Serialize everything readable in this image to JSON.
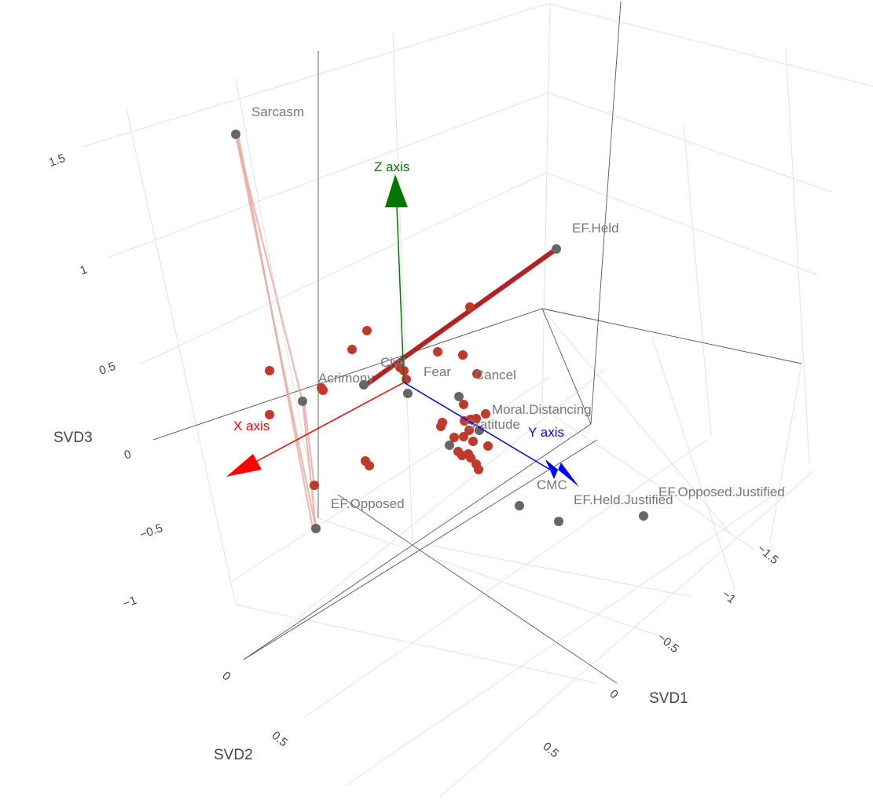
{
  "chart_data": {
    "type": "scatter3d",
    "axes": {
      "x": {
        "title": "SVD1",
        "ticks": [
          "0",
          "−0.5",
          "−1",
          "−1.5"
        ]
      },
      "y": {
        "title": "SVD2",
        "ticks": [
          "0",
          "0.5"
        ]
      },
      "y_extra": {
        "ticks": [
          "−1",
          "−0.5",
          "0",
          "0.5",
          "1",
          "1.5"
        ]
      },
      "z": {
        "title": "SVD3",
        "ticks": [
          "−1",
          "−0.5",
          "0",
          "0.5",
          "1",
          "1.5"
        ]
      },
      "grid": true
    },
    "colors": {
      "red": "#c0392b",
      "gray": "#666666",
      "x_arrow": "#ff0000",
      "y_arrow": "#0000ff",
      "z_arrow": "#007700"
    },
    "reference_arrows": [
      {
        "label": "X axis",
        "color": "#ff0000"
      },
      {
        "label": "Y axis",
        "color": "#0000ff"
      },
      {
        "label": "Z axis",
        "color": "#007700"
      }
    ],
    "labeled_points": [
      {
        "label": "Sarcasm",
        "color": "gray"
      },
      {
        "label": "EF.Held",
        "color": "gray"
      },
      {
        "label": "Civil",
        "color": "gray"
      },
      {
        "label": "Acrimony",
        "color": "gray"
      },
      {
        "label": "Fear",
        "color": "gray"
      },
      {
        "label": "Cancel",
        "color": "gray"
      },
      {
        "label": "Moral.Distancing",
        "color": "gray"
      },
      {
        "label": "Gratitude",
        "color": "gray"
      },
      {
        "label": "EF.Opposed",
        "color": "gray"
      },
      {
        "label": "CMC",
        "color": "gray"
      },
      {
        "label": "EF.Held.Justified",
        "color": "gray"
      },
      {
        "label": "EF.Opposed.Justified",
        "color": "gray"
      }
    ]
  }
}
